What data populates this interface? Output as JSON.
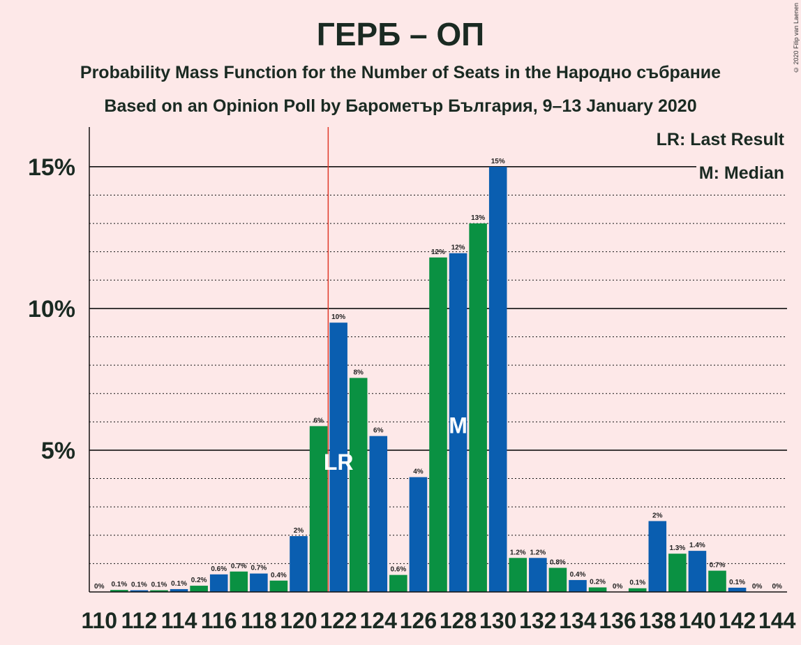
{
  "title": "ГЕРБ – ОП",
  "subtitle": "Probability Mass Function for the Number of Seats in the Народно събрание",
  "subtitle2": "Based on an Opinion Poll by Барометър България, 9–13 January 2020",
  "copyright": "© 2020 Filip van Laenen",
  "legend": {
    "lr": "LR: Last Result",
    "m": "M: Median"
  },
  "chart_data": {
    "type": "bar",
    "x": [
      110,
      111,
      112,
      113,
      114,
      115,
      116,
      117,
      118,
      119,
      120,
      121,
      122,
      123,
      124,
      125,
      126,
      127,
      128,
      129,
      130,
      131,
      132,
      133,
      134,
      135,
      136,
      137,
      138,
      139,
      140,
      141,
      142,
      143,
      144
    ],
    "values": [
      0,
      0.1,
      0.1,
      0.1,
      0.1,
      0.2,
      0.6,
      0.7,
      0.7,
      0.4,
      2,
      6,
      10,
      8,
      6,
      0.6,
      4,
      12,
      12,
      13,
      15,
      1.2,
      1.2,
      0.8,
      0.4,
      0.2,
      0,
      0.1,
      2,
      1.3,
      1.4,
      0.7,
      0.1,
      0,
      0
    ],
    "heights": [
      0,
      0.07,
      0.06,
      0.06,
      0.1,
      0.22,
      0.62,
      0.72,
      0.65,
      0.4,
      1.97,
      5.85,
      9.5,
      7.55,
      5.5,
      0.6,
      4.05,
      11.8,
      11.95,
      13,
      15,
      1.2,
      1.2,
      0.85,
      0.42,
      0.16,
      0,
      0.13,
      2.5,
      1.35,
      1.45,
      0.75,
      0.15,
      0,
      0
    ],
    "labels": [
      "0%",
      "0.1%",
      "0.1%",
      "0.1%",
      "0.1%",
      "0.2%",
      "0.6%",
      "0.7%",
      "0.7%",
      "0.4%",
      "2%",
      "6%",
      "10%",
      "8%",
      "6%",
      "0.6%",
      "4%",
      "12%",
      "12%",
      "13%",
      "15%",
      "1.2%",
      "1.2%",
      "0.8%",
      "0.4%",
      "0.2%",
      "0%",
      "0.1%",
      "2%",
      "1.3%",
      "1.4%",
      "0.7%",
      "0.1%",
      "0%",
      "0%"
    ],
    "colors": {
      "even": "#0a5eb0",
      "odd": "#0a9142",
      "last_result_line": "#e03a2a"
    },
    "ylim": [
      0,
      16.4
    ],
    "yticks": [
      {
        "value": 5,
        "label": "5%"
      },
      {
        "value": 10,
        "label": "10%"
      },
      {
        "value": 15,
        "label": "15%"
      }
    ],
    "xticks": [
      110,
      112,
      114,
      116,
      118,
      120,
      122,
      124,
      126,
      128,
      130,
      132,
      134,
      136,
      138,
      140,
      142,
      144
    ],
    "last_result": 122,
    "median": 128,
    "markers": {
      "last_result": "LR",
      "median": "M"
    }
  }
}
